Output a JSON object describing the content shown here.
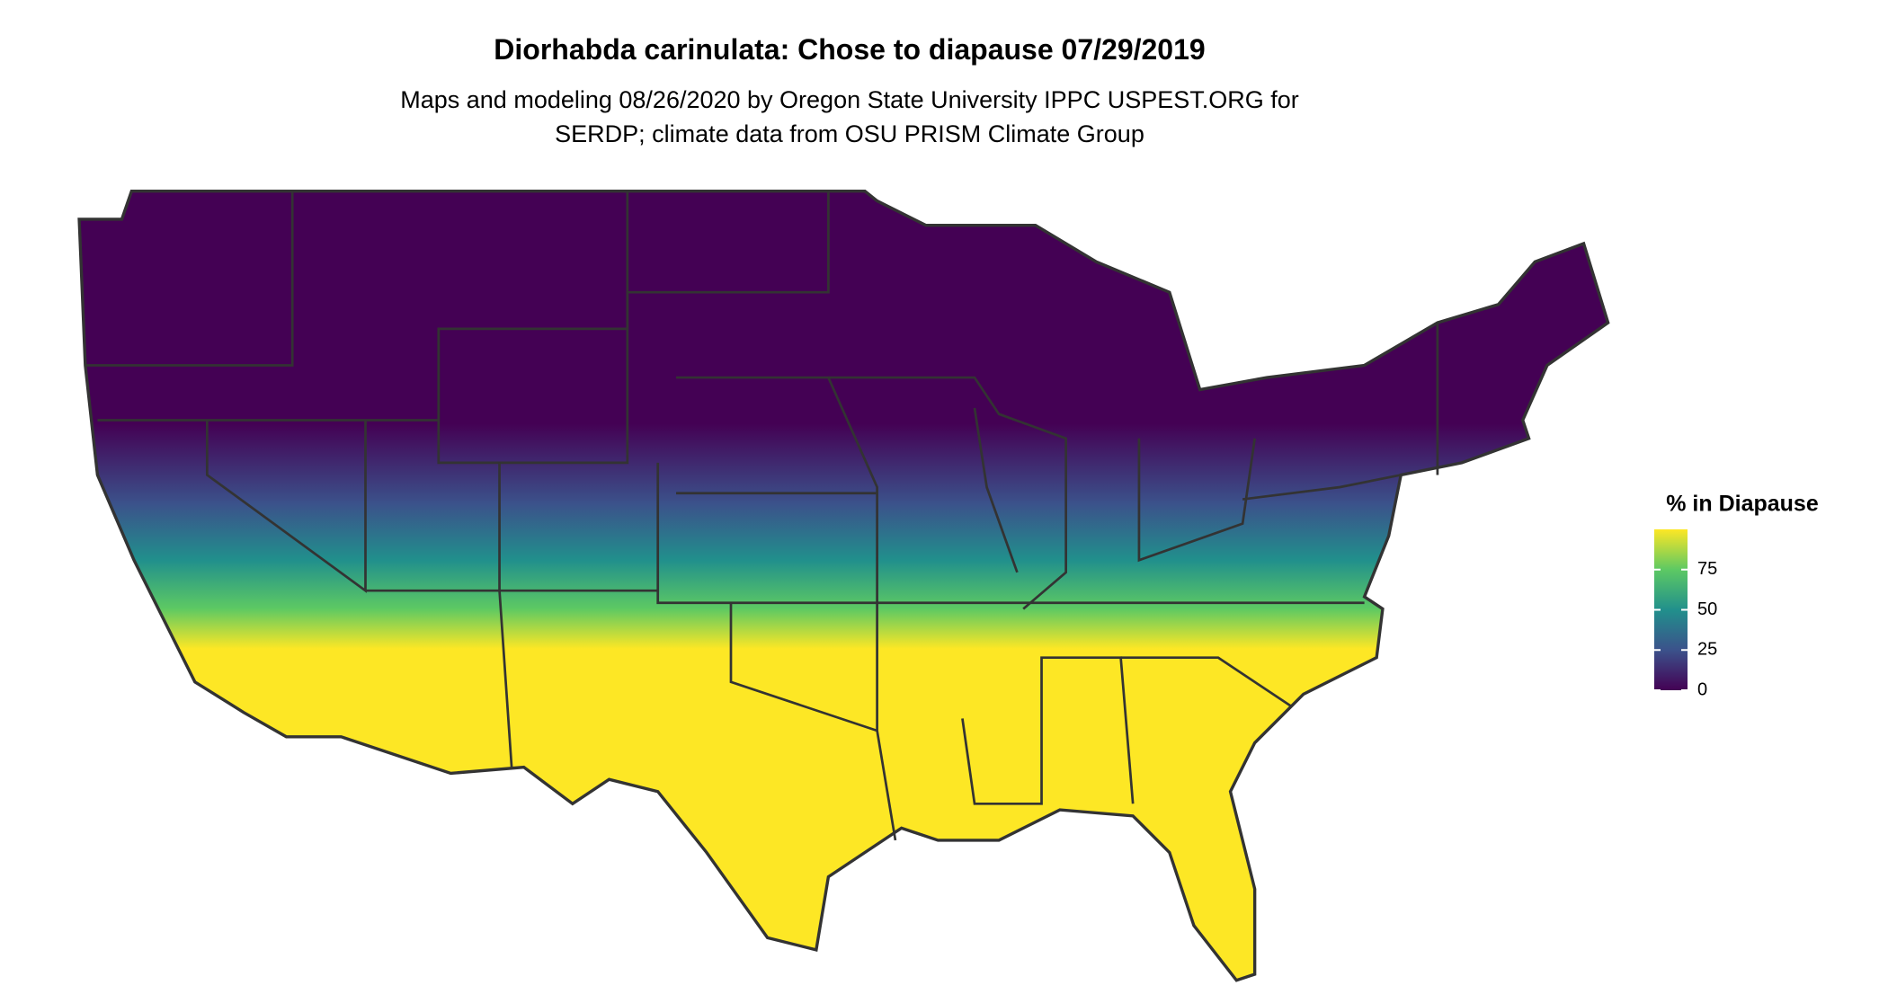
{
  "title": "Diorhabda carinulata: Chose to diapause 07/29/2019",
  "subtitle_lines": [
    "Maps and modeling 08/26/2020 by Oregon State University IPPC USPEST.ORG for",
    "SERDP; climate data from OSU PRISM Climate Group"
  ],
  "legend": {
    "title": "% in Diapause",
    "limits": [
      0,
      100
    ],
    "ticks": [
      0,
      25,
      50,
      75
    ],
    "colors": [
      "#440154",
      "#3b528b",
      "#21908c",
      "#5dc963",
      "#fde725"
    ]
  }
}
